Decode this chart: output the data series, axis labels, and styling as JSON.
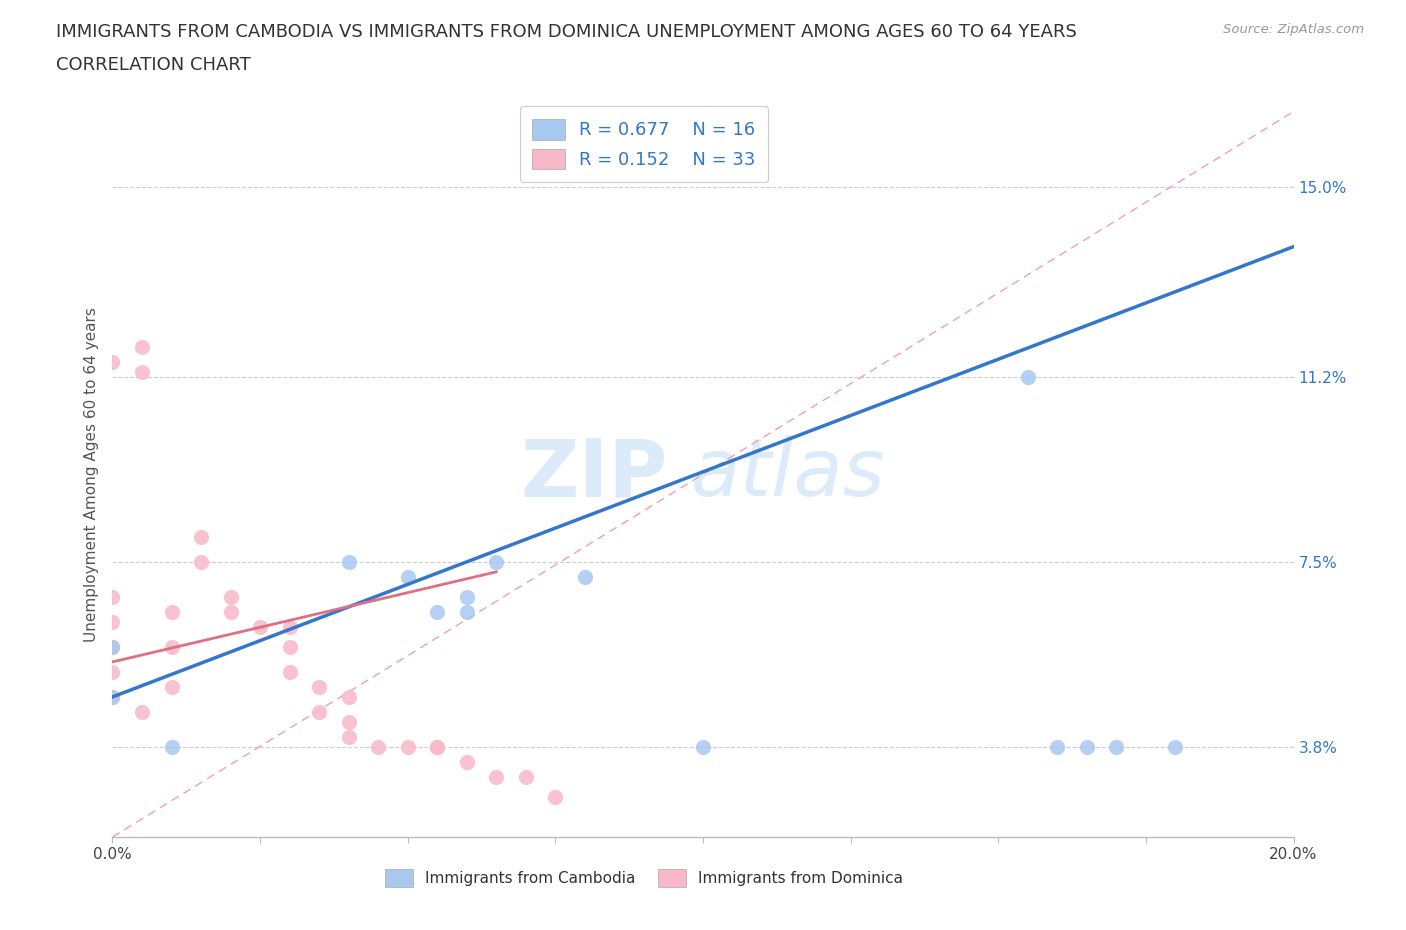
{
  "title_line1": "IMMIGRANTS FROM CAMBODIA VS IMMIGRANTS FROM DOMINICA UNEMPLOYMENT AMONG AGES 60 TO 64 YEARS",
  "title_line2": "CORRELATION CHART",
  "source_text": "Source: ZipAtlas.com",
  "ylabel": "Unemployment Among Ages 60 to 64 years",
  "xlim": [
    0.0,
    0.2
  ],
  "ylim": [
    0.02,
    0.165
  ],
  "ytick_positions": [
    0.038,
    0.075,
    0.112,
    0.15
  ],
  "ytick_labels": [
    "3.8%",
    "7.5%",
    "11.2%",
    "15.0%"
  ],
  "watermark_zip": "ZIP",
  "watermark_atlas": "atlas",
  "legend_R1": "R = 0.677",
  "legend_N1": "N = 16",
  "legend_R2": "R = 0.152",
  "legend_N2": "N = 33",
  "color_cambodia": "#a8c8f0",
  "color_dominica": "#f8b8c8",
  "line_color_cambodia": "#3377cc",
  "line_color_dominica": "#e07080",
  "scatter_cambodia_x": [
    0.0,
    0.0,
    0.01,
    0.04,
    0.05,
    0.055,
    0.06,
    0.06,
    0.065,
    0.08,
    0.1,
    0.155,
    0.17,
    0.18,
    0.165,
    0.16
  ],
  "scatter_cambodia_y": [
    0.058,
    0.048,
    0.038,
    0.075,
    0.072,
    0.065,
    0.065,
    0.068,
    0.075,
    0.072,
    0.038,
    0.112,
    0.038,
    0.038,
    0.038,
    0.038
  ],
  "scatter_dominica_x": [
    0.0,
    0.0,
    0.0,
    0.0,
    0.0,
    0.0,
    0.005,
    0.005,
    0.005,
    0.01,
    0.01,
    0.01,
    0.015,
    0.015,
    0.02,
    0.02,
    0.025,
    0.03,
    0.03,
    0.03,
    0.035,
    0.035,
    0.04,
    0.04,
    0.04,
    0.045,
    0.05,
    0.055,
    0.055,
    0.06,
    0.065,
    0.07,
    0.075
  ],
  "scatter_dominica_y": [
    0.048,
    0.053,
    0.058,
    0.063,
    0.068,
    0.115,
    0.113,
    0.118,
    0.045,
    0.05,
    0.058,
    0.065,
    0.075,
    0.08,
    0.068,
    0.065,
    0.062,
    0.062,
    0.058,
    0.053,
    0.05,
    0.045,
    0.048,
    0.043,
    0.04,
    0.038,
    0.038,
    0.038,
    0.038,
    0.035,
    0.032,
    0.032,
    0.028
  ],
  "title_fontsize": 13,
  "axis_label_fontsize": 11,
  "tick_fontsize": 11,
  "background_color": "#ffffff"
}
